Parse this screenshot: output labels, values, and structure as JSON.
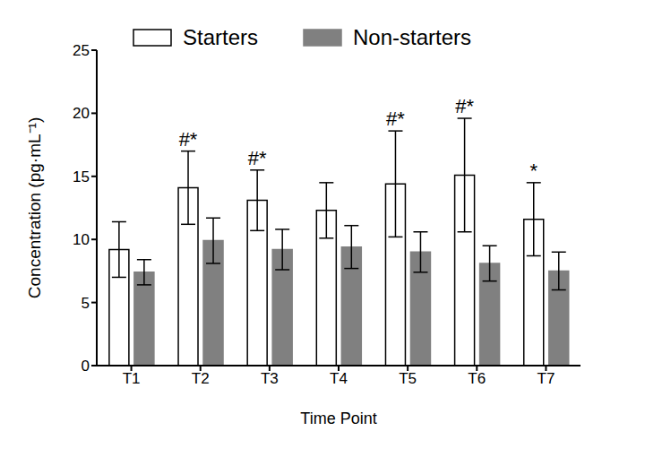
{
  "chart_data": {
    "type": "bar",
    "categories": [
      "T1",
      "T2",
      "T3",
      "T4",
      "T5",
      "T6",
      "T7"
    ],
    "series": [
      {
        "name": "Starters",
        "color": "#ffffff",
        "values": [
          9.2,
          14.1,
          13.1,
          12.3,
          14.4,
          15.1,
          11.6
        ],
        "errors": [
          2.2,
          2.9,
          2.4,
          2.2,
          4.2,
          4.5,
          2.9
        ]
      },
      {
        "name": "Non-starters",
        "color": "#808080",
        "values": [
          7.4,
          9.9,
          9.2,
          9.4,
          9.0,
          8.1,
          7.5
        ],
        "errors": [
          1.0,
          1.8,
          1.6,
          1.7,
          1.6,
          1.4,
          1.5
        ]
      }
    ],
    "annotations": [
      null,
      "#*",
      "#*",
      null,
      "#*",
      "#*",
      "*"
    ],
    "xlabel": "Time Point",
    "ylabel": "Concentration (pg·mL⁻¹)",
    "ylim": [
      0,
      25
    ],
    "yticks": [
      0,
      5,
      10,
      15,
      20,
      25
    ],
    "grid": false,
    "legend": "top"
  }
}
